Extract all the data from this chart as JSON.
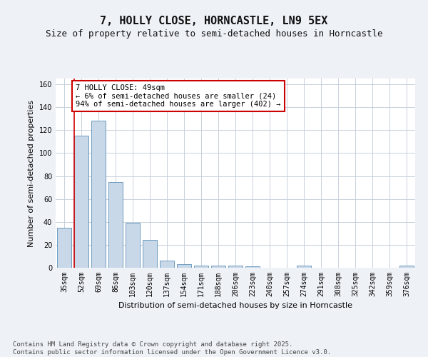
{
  "title": "7, HOLLY CLOSE, HORNCASTLE, LN9 5EX",
  "subtitle": "Size of property relative to semi-detached houses in Horncastle",
  "xlabel": "Distribution of semi-detached houses by size in Horncastle",
  "ylabel": "Number of semi-detached properties",
  "categories": [
    "35sqm",
    "52sqm",
    "69sqm",
    "86sqm",
    "103sqm",
    "120sqm",
    "137sqm",
    "154sqm",
    "171sqm",
    "188sqm",
    "206sqm",
    "223sqm",
    "240sqm",
    "257sqm",
    "274sqm",
    "291sqm",
    "308sqm",
    "325sqm",
    "342sqm",
    "359sqm",
    "376sqm"
  ],
  "values": [
    35,
    115,
    128,
    75,
    39,
    24,
    6,
    3,
    2,
    2,
    2,
    1,
    0,
    0,
    2,
    0,
    0,
    0,
    0,
    0,
    2
  ],
  "bar_color": "#c8d8e8",
  "bar_edge_color": "#5a8fb8",
  "annotation_text": "7 HOLLY CLOSE: 49sqm\n← 6% of semi-detached houses are smaller (24)\n94% of semi-detached houses are larger (402) →",
  "annotation_box_color": "#ffffff",
  "annotation_box_edge_color": "#cc0000",
  "red_line_color": "#cc0000",
  "ylim": [
    0,
    165
  ],
  "yticks": [
    0,
    20,
    40,
    60,
    80,
    100,
    120,
    140,
    160
  ],
  "footer_text": "Contains HM Land Registry data © Crown copyright and database right 2025.\nContains public sector information licensed under the Open Government Licence v3.0.",
  "background_color": "#eef2f7",
  "plot_background_color": "#ffffff",
  "grid_color": "#c8d0dc",
  "title_fontsize": 11,
  "subtitle_fontsize": 9,
  "axis_label_fontsize": 8,
  "tick_fontsize": 7,
  "annotation_fontsize": 7.5,
  "footer_fontsize": 6.5
}
